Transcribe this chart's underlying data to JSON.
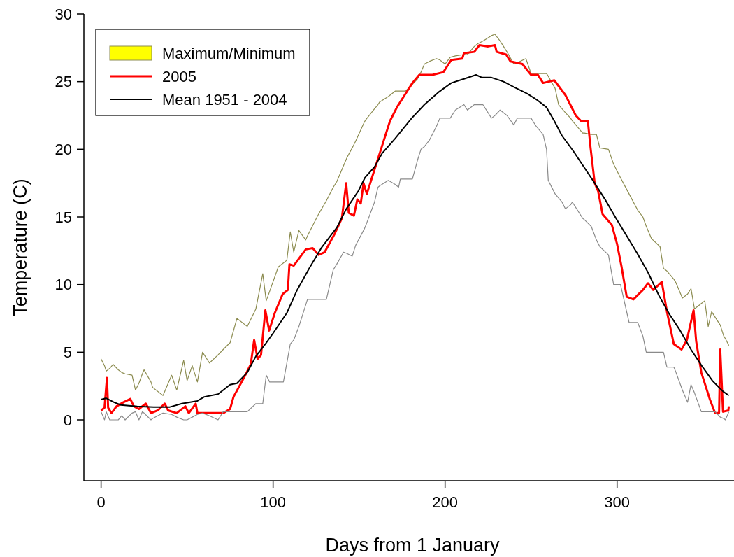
{
  "chart_data": {
    "type": "line",
    "xlabel": "Days from 1 January",
    "ylabel": "Temperature (C)",
    "xlim": [
      -10,
      368
    ],
    "ylim": [
      -4.5,
      30
    ],
    "xticks": [
      0,
      100,
      200,
      300
    ],
    "yticks": [
      0,
      5,
      10,
      15,
      20,
      25,
      30
    ],
    "legend": "top left",
    "grid": false,
    "series": [
      {
        "name": "Maximum/Minimum",
        "type": "line",
        "color": "#8c8c50",
        "x": [
          0,
          2,
          3,
          5,
          7,
          10,
          12,
          14,
          18,
          20,
          22,
          24,
          25,
          29,
          30,
          36,
          41,
          44,
          48,
          50,
          53,
          56,
          59,
          63,
          68,
          71,
          75,
          79,
          85,
          90,
          94,
          96,
          98,
          103,
          106,
          108,
          110,
          112,
          115,
          119,
          120,
          126,
          131,
          135,
          137,
          141,
          143,
          146,
          148,
          153,
          154,
          159,
          161,
          162,
          167,
          171,
          173,
          174,
          177,
          181,
          184,
          186,
          188,
          191,
          195,
          197,
          200,
          203,
          206,
          211,
          213,
          217,
          219,
          222,
          227,
          229,
          232,
          236,
          240,
          242,
          247,
          250,
          253,
          257,
          259,
          260,
          264,
          266,
          268,
          270,
          273,
          274,
          280,
          281,
          285,
          288,
          290,
          295,
          298,
          302,
          307,
          312,
          315,
          317,
          320,
          325,
          327,
          329,
          333,
          334,
          338,
          341,
          343,
          345,
          349,
          351,
          353,
          355,
          357,
          360,
          362,
          363,
          365
        ],
        "values": [
          4.5,
          4.0,
          3.6,
          3.8,
          4.1,
          3.7,
          3.5,
          3.4,
          3.3,
          2.2,
          2.7,
          3.4,
          3.7,
          2.8,
          2.4,
          1.8,
          3.3,
          2.2,
          4.4,
          2.9,
          4.0,
          2.8,
          5.0,
          4.2,
          4.8,
          5.2,
          5.7,
          7.5,
          6.9,
          8.2,
          10.8,
          8.8,
          9.5,
          11.3,
          11.6,
          11.8,
          13.9,
          12.4,
          14.0,
          13.3,
          13.6,
          15.1,
          16.2,
          17.2,
          17.6,
          18.8,
          19.4,
          20.1,
          20.6,
          22.0,
          22.2,
          23.0,
          23.3,
          23.5,
          23.9,
          24.3,
          24.3,
          24.3,
          24.3,
          24.8,
          25.2,
          25.7,
          26.3,
          26.5,
          26.7,
          26.6,
          26.3,
          26.8,
          26.9,
          27.0,
          27.0,
          27.6,
          27.8,
          28.0,
          28.4,
          28.5,
          28.0,
          27.2,
          26.3,
          26.4,
          26.7,
          25.6,
          25.6,
          25.6,
          25.6,
          25.4,
          24.5,
          23.3,
          23.0,
          22.7,
          22.3,
          22.1,
          21.2,
          21.2,
          21.1,
          21.1,
          20.1,
          20.0,
          18.9,
          17.9,
          16.7,
          15.5,
          15.0,
          14.3,
          13.4,
          12.8,
          11.2,
          11.0,
          10.4,
          10.2,
          9.0,
          9.3,
          9.7,
          8.2,
          8.6,
          8.8,
          6.9,
          8.0,
          7.6,
          7.0,
          6.2,
          6.0,
          5.5
        ]
      },
      {
        "type": "line",
        "color": "#8a8a8a",
        "x": [
          0,
          2,
          3,
          5,
          7,
          10,
          12,
          14,
          18,
          20,
          22,
          24,
          25,
          29,
          30,
          36,
          41,
          44,
          48,
          50,
          53,
          56,
          59,
          63,
          68,
          71,
          75,
          79,
          85,
          90,
          94,
          96,
          98,
          103,
          106,
          108,
          110,
          112,
          115,
          119,
          120,
          126,
          131,
          135,
          137,
          141,
          143,
          146,
          148,
          153,
          154,
          159,
          161,
          162,
          167,
          171,
          173,
          174,
          177,
          181,
          184,
          186,
          188,
          191,
          195,
          197,
          200,
          203,
          206,
          211,
          213,
          217,
          219,
          222,
          227,
          229,
          232,
          236,
          240,
          242,
          247,
          250,
          253,
          257,
          259,
          260,
          264,
          266,
          268,
          270,
          273,
          274,
          280,
          281,
          285,
          288,
          290,
          295,
          298,
          302,
          307,
          312,
          315,
          317,
          320,
          325,
          327,
          329,
          333,
          334,
          338,
          341,
          343,
          345,
          349,
          351,
          353,
          355,
          357,
          360,
          362,
          363,
          365
        ],
        "values": [
          0.6,
          0,
          0.6,
          0,
          0,
          0,
          0.3,
          0,
          0.5,
          0.6,
          0,
          0.6,
          0.5,
          0,
          0.1,
          0.5,
          0.4,
          0.2,
          0,
          0,
          0.2,
          0.4,
          0.5,
          0.3,
          0,
          0.6,
          0.6,
          0.6,
          0.6,
          1.2,
          1.2,
          3.3,
          2.8,
          2.8,
          2.8,
          4.2,
          5.6,
          5.9,
          6.9,
          8.5,
          8.9,
          8.9,
          8.9,
          11.1,
          11.5,
          12.4,
          12.3,
          12.1,
          12.9,
          14.1,
          14.4,
          16.1,
          17.2,
          17.3,
          17.7,
          17.4,
          17.2,
          17.8,
          17.8,
          17.8,
          19.2,
          20.0,
          20.2,
          20.7,
          21.7,
          22.3,
          22.3,
          22.3,
          22.9,
          23.3,
          22.9,
          23.3,
          23.3,
          23.3,
          22.3,
          22.5,
          22.9,
          22.5,
          21.8,
          22.3,
          22.3,
          22.3,
          21.7,
          21.1,
          20.0,
          17.7,
          16.7,
          16.4,
          16.1,
          15.6,
          15.9,
          16.1,
          14.9,
          14.8,
          14.3,
          13.3,
          12.8,
          12.2,
          10.0,
          10.0,
          7.2,
          7.2,
          6.2,
          5.0,
          5.0,
          5.0,
          5.0,
          3.9,
          3.9,
          3.6,
          2.2,
          1.3,
          2.6,
          2.0,
          0.6,
          0.6,
          0.6,
          0.6,
          0.6,
          0.2,
          0.1,
          0,
          0.6
        ]
      },
      {
        "name": "2005",
        "color": "#ff0000",
        "x": [
          0,
          2,
          3.4,
          4.1,
          6,
          9,
          13,
          17,
          19,
          22,
          26,
          29,
          33,
          37,
          39,
          44,
          49,
          51,
          55,
          56,
          71,
          75,
          77,
          80,
          83,
          87,
          89,
          91,
          93,
          95.5,
          97.7,
          101,
          105.6,
          108.6,
          109.5,
          112,
          119,
          123,
          126.5,
          130,
          136,
          140,
          142.5,
          144,
          147,
          149,
          151,
          152.6,
          154.5,
          158,
          163,
          168,
          172,
          177,
          181,
          185,
          192.6,
          199,
          203.6,
          210,
          211,
          217,
          220,
          225,
          229,
          230,
          235.5,
          238,
          245,
          250,
          254,
          257,
          263.5,
          270,
          276,
          279,
          283,
          284.6,
          287,
          289,
          291.6,
          297,
          300,
          302.5,
          305.6,
          309.5,
          315,
          318,
          321,
          326,
          329,
          333,
          337.5,
          340.6,
          344.5,
          346,
          349,
          354,
          357,
          359.3,
          360,
          361.6,
          364.7,
          365
        ],
        "values": [
          0.7,
          0.9,
          3.1,
          0.9,
          0.5,
          1.0,
          1.3,
          1.55,
          1.0,
          0.8,
          1.2,
          0.5,
          0.7,
          1.2,
          0.7,
          0.5,
          1.0,
          0.5,
          1.2,
          0.5,
          0.5,
          0.8,
          1.7,
          2.4,
          3.1,
          4.1,
          5.9,
          4.5,
          4.8,
          8.1,
          6.6,
          7.9,
          9.3,
          9.6,
          11.5,
          11.4,
          12.6,
          12.7,
          12.2,
          12.4,
          13.8,
          14.9,
          17.5,
          15.3,
          15.1,
          16.3,
          16.0,
          17.5,
          16.7,
          18.1,
          20.1,
          22.1,
          23.1,
          24.1,
          24.9,
          25.5,
          25.5,
          25.7,
          26.6,
          26.7,
          27.1,
          27.2,
          27.7,
          27.6,
          27.7,
          27.2,
          27.0,
          26.5,
          26.3,
          25.5,
          25.5,
          24.9,
          25.1,
          24.0,
          22.5,
          22.1,
          22.1,
          20.1,
          17.5,
          16.9,
          15.2,
          14.4,
          13.0,
          11.4,
          9.1,
          8.9,
          9.6,
          10.1,
          9.6,
          10.2,
          8.0,
          5.6,
          5.2,
          5.9,
          8.1,
          5.8,
          3.5,
          1.5,
          0.5,
          0.5,
          5.2,
          0.6,
          0.7,
          1.0
        ]
      },
      {
        "name": "Mean 1951 - 2004",
        "color": "#000000",
        "x": [
          0,
          3,
          7.5,
          11.5,
          21,
          30.5,
          40,
          47,
          56,
          60,
          68,
          75,
          79,
          85,
          90,
          95.5,
          100,
          108,
          114,
          121,
          128,
          137,
          142.6,
          149.5,
          153.4,
          159,
          163.4,
          171,
          180.6,
          188,
          196,
          203.6,
          211,
          218,
          221.5,
          227,
          234,
          240,
          248,
          254,
          259,
          263.5,
          268,
          274.4,
          280.7,
          287,
          293,
          299.4,
          305.6,
          311.8,
          318,
          324.3,
          330.5,
          336.7,
          343,
          349.2,
          355.4,
          361.6,
          365
        ],
        "values": [
          1.5,
          1.6,
          1.3,
          1.1,
          1.0,
          0.95,
          0.95,
          1.2,
          1.4,
          1.7,
          1.9,
          2.6,
          2.7,
          3.5,
          4.7,
          5.6,
          6.4,
          7.9,
          9.6,
          11.2,
          12.7,
          14.2,
          15.6,
          16.9,
          17.9,
          18.7,
          19.7,
          20.8,
          22.3,
          23.3,
          24.2,
          24.9,
          25.2,
          25.5,
          25.3,
          25.3,
          25.0,
          24.6,
          24.1,
          23.6,
          23.1,
          22.1,
          21.0,
          19.9,
          18.7,
          17.5,
          16.3,
          14.9,
          13.6,
          12.3,
          10.9,
          9.2,
          7.8,
          6.6,
          5.2,
          4.0,
          2.9,
          2.1,
          1.8
        ]
      }
    ]
  }
}
